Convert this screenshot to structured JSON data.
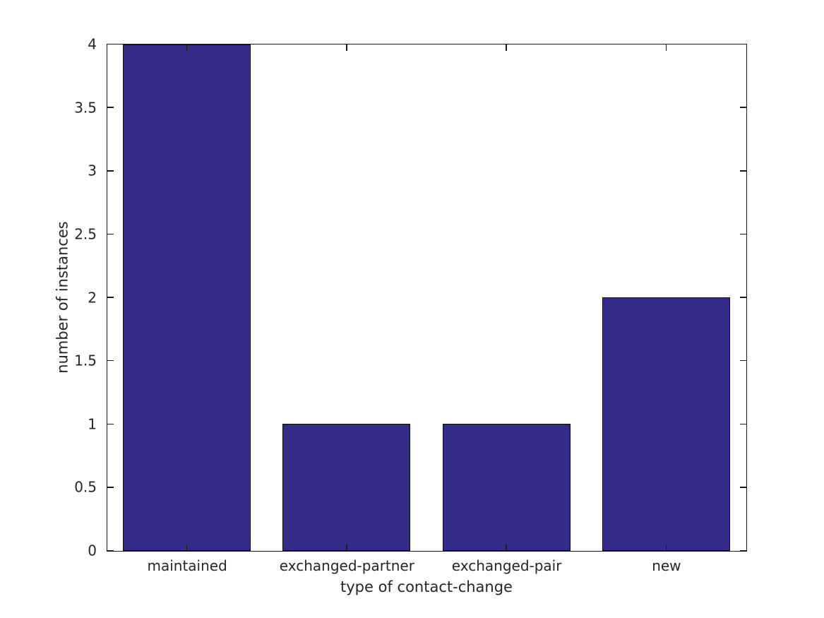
{
  "chart_data": {
    "type": "bar",
    "categories": [
      "maintained",
      "exchanged-partner",
      "exchanged-pair",
      "new"
    ],
    "values": [
      4,
      1,
      1,
      2
    ],
    "xlabel": "type of contact-change",
    "ylabel": "number of instances",
    "ylim": [
      0,
      4
    ],
    "yticks": [
      0,
      0.5,
      1,
      1.5,
      2,
      2.5,
      3,
      3.5,
      4
    ],
    "ytick_labels": [
      "0",
      "0.5",
      "1",
      "1.5",
      "2",
      "2.5",
      "3",
      "3.5",
      "4"
    ],
    "bar_width_fraction": 0.8,
    "grid": false,
    "legend": null,
    "colors": {
      "bar_fill": "#352a87",
      "bar_edge": "#0d0d0d",
      "axis": "#1a1a1a",
      "text": "#262626"
    }
  }
}
